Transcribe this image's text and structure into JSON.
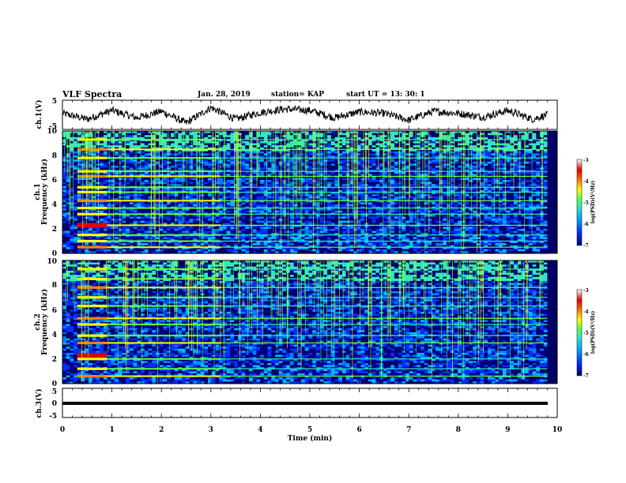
{
  "header": {
    "title": "VLF Spectra",
    "date": "Jan. 28, 2019",
    "station": "station= KAP",
    "start_ut": "start  UT =  13: 30: 1"
  },
  "chart_data": [
    {
      "type": "line",
      "panel": "ch1-waveform",
      "ylabel": "ch.1(V)",
      "ylim": [
        -5,
        5
      ],
      "yticks": [
        "5",
        "-5"
      ],
      "xlim": [
        0,
        10
      ],
      "note": "noisy voltage trace oscillating roughly between -3 V and +3 V over ~9.8 min",
      "series": [
        {
          "x": [
            0,
            0.5,
            1,
            1.5,
            2,
            2.5,
            3,
            3.5,
            4,
            4.5,
            5,
            5.5,
            6,
            6.5,
            7,
            7.5,
            8,
            8.5,
            9,
            9.5,
            9.8
          ],
          "values": [
            0.5,
            -1.5,
            1.5,
            -1,
            1.2,
            -2.8,
            2.5,
            -1.5,
            0.8,
            2,
            1.5,
            -1,
            1,
            0.5,
            -1.8,
            1.2,
            0.5,
            -0.8,
            1.5,
            -1.5,
            0
          ]
        }
      ]
    },
    {
      "type": "heatmap",
      "panel": "ch1-spectrogram",
      "ylabel": "ch.1\nFrequency (kHz)",
      "ylim": [
        0,
        10
      ],
      "yticks": [
        "0",
        "2",
        "4",
        "6",
        "8",
        "10"
      ],
      "xlim": [
        0,
        10
      ],
      "colorbar": {
        "label": "log(PSD)(V²/Hz)",
        "range": [
          -7,
          -3
        ],
        "ticks": [
          "-3",
          "-4",
          "-5",
          "-6",
          "-7"
        ]
      },
      "intense_lines_kHz": [
        0.5,
        1.0,
        1.5,
        2.3,
        3.2,
        3.7,
        4.3,
        5.0,
        5.4,
        6.3,
        6.7,
        7.8,
        8.5,
        9.3
      ],
      "segment_changes_min": [
        0.9,
        3.2
      ]
    },
    {
      "type": "heatmap",
      "panel": "ch2-spectrogram",
      "ylabel": "ch.2\nFrequency (kHz)",
      "ylim": [
        0,
        10
      ],
      "yticks": [
        "0",
        "2",
        "4",
        "6",
        "8",
        "10"
      ],
      "xlim": [
        0,
        10
      ],
      "colorbar": {
        "label": "log(PSD)(V²/Hz)",
        "range": [
          -7,
          -3
        ],
        "ticks": [
          "-3",
          "-4",
          "-5",
          "-6",
          "-7"
        ]
      },
      "intense_lines_kHz": [
        0.6,
        1.2,
        2.0,
        3.3,
        3.9,
        4.8,
        5.3,
        6.3,
        7.0,
        7.8,
        8.5,
        9.3
      ],
      "segment_changes_min": [
        0.9,
        3.2
      ]
    },
    {
      "type": "line",
      "panel": "ch3-waveform",
      "ylabel": "ch.3(V)",
      "ylim": [
        -5,
        5
      ],
      "yticks": [
        "5",
        "0",
        "-5"
      ],
      "xlim": [
        0,
        10
      ],
      "series": [
        {
          "x": [
            0,
            9.8
          ],
          "values": [
            0,
            0
          ]
        }
      ]
    }
  ],
  "xaxis": {
    "label": "Time (min)",
    "ticks": [
      "0",
      "1",
      "2",
      "3",
      "4",
      "5",
      "6",
      "7",
      "8",
      "9",
      "10"
    ]
  },
  "colors": {
    "background": "#000066",
    "scale": [
      "#000070",
      "#0020ff",
      "#00a0ff",
      "#30e0c0",
      "#60ff40",
      "#ffff00",
      "#ff8000",
      "#e00000",
      "#ffffff"
    ]
  }
}
